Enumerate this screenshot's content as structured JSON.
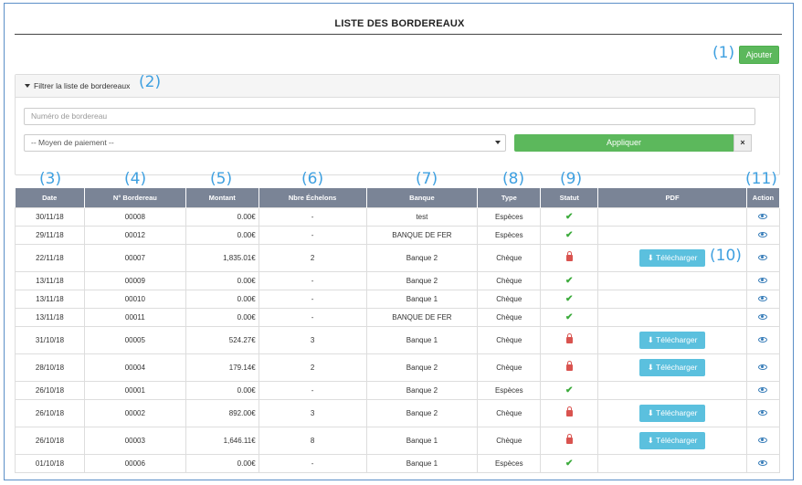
{
  "page": {
    "title": "LISTE DES BORDEREAUX"
  },
  "annotations": [
    "(1)",
    "(2)",
    "(3)",
    "(4)",
    "(5)",
    "(6)",
    "(7)",
    "(8)",
    "(9)",
    "(10)",
    "(11)"
  ],
  "toolbar": {
    "add_label": "Ajouter"
  },
  "filter": {
    "header": "Filtrer la liste de bordereaux",
    "number_placeholder": "Numéro de bordereau",
    "payment_select": "-- Moyen de paiement --",
    "apply_label": "Appliquer",
    "clear_label": "×"
  },
  "table": {
    "columns": [
      "Date",
      "N° Bordereau",
      "Montant",
      "Nbre Échelons",
      "Banque",
      "Type",
      "Statut",
      "PDF",
      "Action"
    ],
    "download_label": "Télécharger",
    "rows": [
      {
        "date": "30/11/18",
        "number": "00008",
        "amount": "0.00€",
        "steps": "-",
        "bank": "test",
        "type": "Espèces",
        "status": "ok",
        "pdf": false
      },
      {
        "date": "29/11/18",
        "number": "00012",
        "amount": "0.00€",
        "steps": "-",
        "bank": "BANQUE DE FER",
        "type": "Espèces",
        "status": "ok",
        "pdf": false
      },
      {
        "date": "22/11/18",
        "number": "00007",
        "amount": "1,835.01€",
        "steps": "2",
        "bank": "Banque 2",
        "type": "Chèque",
        "status": "locked",
        "pdf": true
      },
      {
        "date": "13/11/18",
        "number": "00009",
        "amount": "0.00€",
        "steps": "-",
        "bank": "Banque 2",
        "type": "Chèque",
        "status": "ok",
        "pdf": false
      },
      {
        "date": "13/11/18",
        "number": "00010",
        "amount": "0.00€",
        "steps": "-",
        "bank": "Banque 1",
        "type": "Chèque",
        "status": "ok",
        "pdf": false
      },
      {
        "date": "13/11/18",
        "number": "00011",
        "amount": "0.00€",
        "steps": "-",
        "bank": "BANQUE DE FER",
        "type": "Chèque",
        "status": "ok",
        "pdf": false
      },
      {
        "date": "31/10/18",
        "number": "00005",
        "amount": "524.27€",
        "steps": "3",
        "bank": "Banque 1",
        "type": "Chèque",
        "status": "locked",
        "pdf": true
      },
      {
        "date": "28/10/18",
        "number": "00004",
        "amount": "179.14€",
        "steps": "2",
        "bank": "Banque 2",
        "type": "Chèque",
        "status": "locked",
        "pdf": true
      },
      {
        "date": "26/10/18",
        "number": "00001",
        "amount": "0.00€",
        "steps": "-",
        "bank": "Banque 2",
        "type": "Espèces",
        "status": "ok",
        "pdf": false
      },
      {
        "date": "26/10/18",
        "number": "00002",
        "amount": "892.00€",
        "steps": "3",
        "bank": "Banque 2",
        "type": "Chèque",
        "status": "locked",
        "pdf": true
      },
      {
        "date": "26/10/18",
        "number": "00003",
        "amount": "1,646.11€",
        "steps": "8",
        "bank": "Banque 1",
        "type": "Chèque",
        "status": "locked",
        "pdf": true
      },
      {
        "date": "01/10/18",
        "number": "00006",
        "amount": "0.00€",
        "steps": "-",
        "bank": "Banque 1",
        "type": "Espèces",
        "status": "ok",
        "pdf": false
      }
    ]
  },
  "icons": {
    "filter": "filter-icon",
    "status_ok": "check-icon",
    "status_locked": "lock-icon",
    "download": "download-icon",
    "view": "eye-icon",
    "caret": "caret-down-icon"
  },
  "colors": {
    "primary_green": "#5cb85c",
    "info_blue": "#5bc0de",
    "header_gray": "#7a8496",
    "annotation": "#3fa0e0",
    "check": "#3cab3c",
    "lock": "#d9534f",
    "eye": "#337ab7"
  }
}
